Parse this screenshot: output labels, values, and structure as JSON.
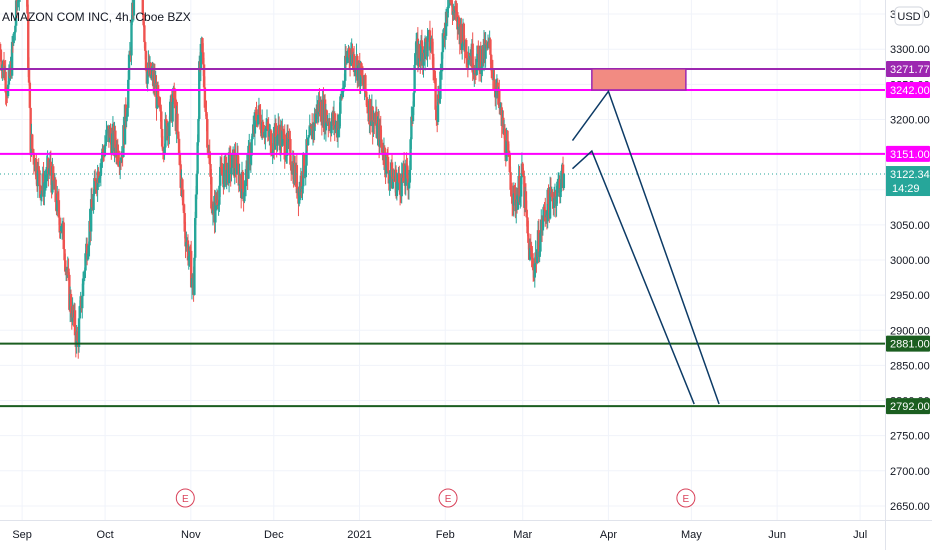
{
  "header": {
    "symbol_title": "AMAZON COM INC, 4h, Cboe BZX",
    "currency_button": "USD"
  },
  "colors": {
    "up_candle": "#26a69a",
    "down_candle": "#ef5350",
    "resistance_purple": "#9c27b0",
    "resistance_magenta": "#ff00ff",
    "support_green": "#1b5e20",
    "current_price": "#26a69a",
    "zone_fill": "#f28b82",
    "projection_line": "#0d3b66",
    "earnings_marker": "#d9425a"
  },
  "chart_data": {
    "type": "candlestick",
    "title": "AMAZON COM INC, 4h, Cboe BZX",
    "x_ticks": [
      "Sep",
      "Oct",
      "Nov",
      "Dec",
      "2021",
      "Feb",
      "Mar",
      "Apr",
      "May",
      "Jun",
      "Jul"
    ],
    "y_ticks": [
      "3350.00",
      "3300.00",
      "3250.00",
      "3200.00",
      "3150.00",
      "3100.00",
      "3050.00",
      "3000.00",
      "2950.00",
      "2900.00",
      "2850.00",
      "2800.00",
      "2750.00",
      "2700.00",
      "2650.00"
    ],
    "y_tick_values": [
      3350,
      3300,
      3250,
      3200,
      3150,
      3100,
      3050,
      3000,
      2950,
      2900,
      2850,
      2800,
      2750,
      2700,
      2650
    ],
    "ylim": [
      2630,
      3370
    ],
    "x_range_months": [
      "2020-08-24",
      "2021-07-10"
    ],
    "price_path": [
      [
        "2020-08-24",
        3300
      ],
      [
        "2020-08-27",
        3240
      ],
      [
        "2020-09-02",
        3470
      ],
      [
        "2020-09-04",
        3170
      ],
      [
        "2020-09-08",
        3100
      ],
      [
        "2020-09-11",
        3130
      ],
      [
        "2020-09-16",
        3030
      ],
      [
        "2020-09-18",
        2950
      ],
      [
        "2020-09-21",
        2880
      ],
      [
        "2020-09-24",
        3010
      ],
      [
        "2020-09-28",
        3120
      ],
      [
        "2020-10-02",
        3180
      ],
      [
        "2020-10-07",
        3150
      ],
      [
        "2020-10-09",
        3230
      ],
      [
        "2020-10-13",
        3480
      ],
      [
        "2020-10-16",
        3270
      ],
      [
        "2020-10-19",
        3250
      ],
      [
        "2020-10-22",
        3170
      ],
      [
        "2020-10-26",
        3230
      ],
      [
        "2020-10-30",
        3040
      ],
      [
        "2020-11-02",
        2960
      ],
      [
        "2020-11-04",
        3260
      ],
      [
        "2020-11-05",
        3300
      ],
      [
        "2020-11-09",
        3060
      ],
      [
        "2020-11-12",
        3120
      ],
      [
        "2020-11-17",
        3140
      ],
      [
        "2020-11-20",
        3100
      ],
      [
        "2020-11-25",
        3210
      ],
      [
        "2020-11-30",
        3170
      ],
      [
        "2020-12-03",
        3180
      ],
      [
        "2020-12-07",
        3150
      ],
      [
        "2020-12-10",
        3100
      ],
      [
        "2020-12-14",
        3170
      ],
      [
        "2020-12-17",
        3220
      ],
      [
        "2020-12-21",
        3200
      ],
      [
        "2020-12-24",
        3190
      ],
      [
        "2020-12-28",
        3300
      ],
      [
        "2020-12-31",
        3280
      ],
      [
        "2021-01-05",
        3210
      ],
      [
        "2021-01-08",
        3180
      ],
      [
        "2021-01-12",
        3120
      ],
      [
        "2021-01-15",
        3110
      ],
      [
        "2021-01-19",
        3120
      ],
      [
        "2021-01-21",
        3290
      ],
      [
        "2021-01-27",
        3310
      ],
      [
        "2021-01-29",
        3210
      ],
      [
        "2021-02-02",
        3380
      ],
      [
        "2021-02-05",
        3340
      ],
      [
        "2021-02-09",
        3300
      ],
      [
        "2021-02-12",
        3280
      ],
      [
        "2021-02-17",
        3300
      ],
      [
        "2021-02-19",
        3250
      ],
      [
        "2021-02-23",
        3160
      ],
      [
        "2021-02-26",
        3080
      ],
      [
        "2021-03-01",
        3120
      ],
      [
        "2021-03-03",
        3020
      ],
      [
        "2021-03-05",
        2990
      ],
      [
        "2021-03-09",
        3070
      ],
      [
        "2021-03-12",
        3090
      ],
      [
        "2021-03-16",
        3122.34
      ]
    ],
    "horizontal_levels": [
      {
        "price": 3271.77,
        "label": "3271.77",
        "color": "#9c27b0"
      },
      {
        "price": 3242.0,
        "label": "3242.00",
        "color": "#ff00ff"
      },
      {
        "price": 3151.0,
        "label": "3151.00",
        "color": "#ff00ff"
      },
      {
        "price": 2881.0,
        "label": "2881.00",
        "color": "#1b5e20"
      },
      {
        "price": 2792.0,
        "label": "2792.00",
        "color": "#1b5e20"
      }
    ],
    "current_price": {
      "label": "3122.34",
      "countdown": "14:29",
      "price": 3122.34
    },
    "resistance_zone": {
      "x0": "2021-03-26",
      "x1": "2021-04-29",
      "y_low": 3242,
      "y_high": 3272
    },
    "projection_lines": [
      [
        [
          "2021-03-19",
          3170
        ],
        [
          "2021-04-01",
          3240
        ],
        [
          "2021-05-11",
          2795
        ]
      ],
      [
        [
          "2021-03-19",
          3130
        ],
        [
          "2021-03-26",
          3155
        ],
        [
          "2021-05-02",
          2795
        ]
      ]
    ],
    "earnings_markers": [
      "2020-10-30",
      "2021-02-02",
      "2021-04-29"
    ],
    "earnings_label": "E",
    "grid": true
  }
}
